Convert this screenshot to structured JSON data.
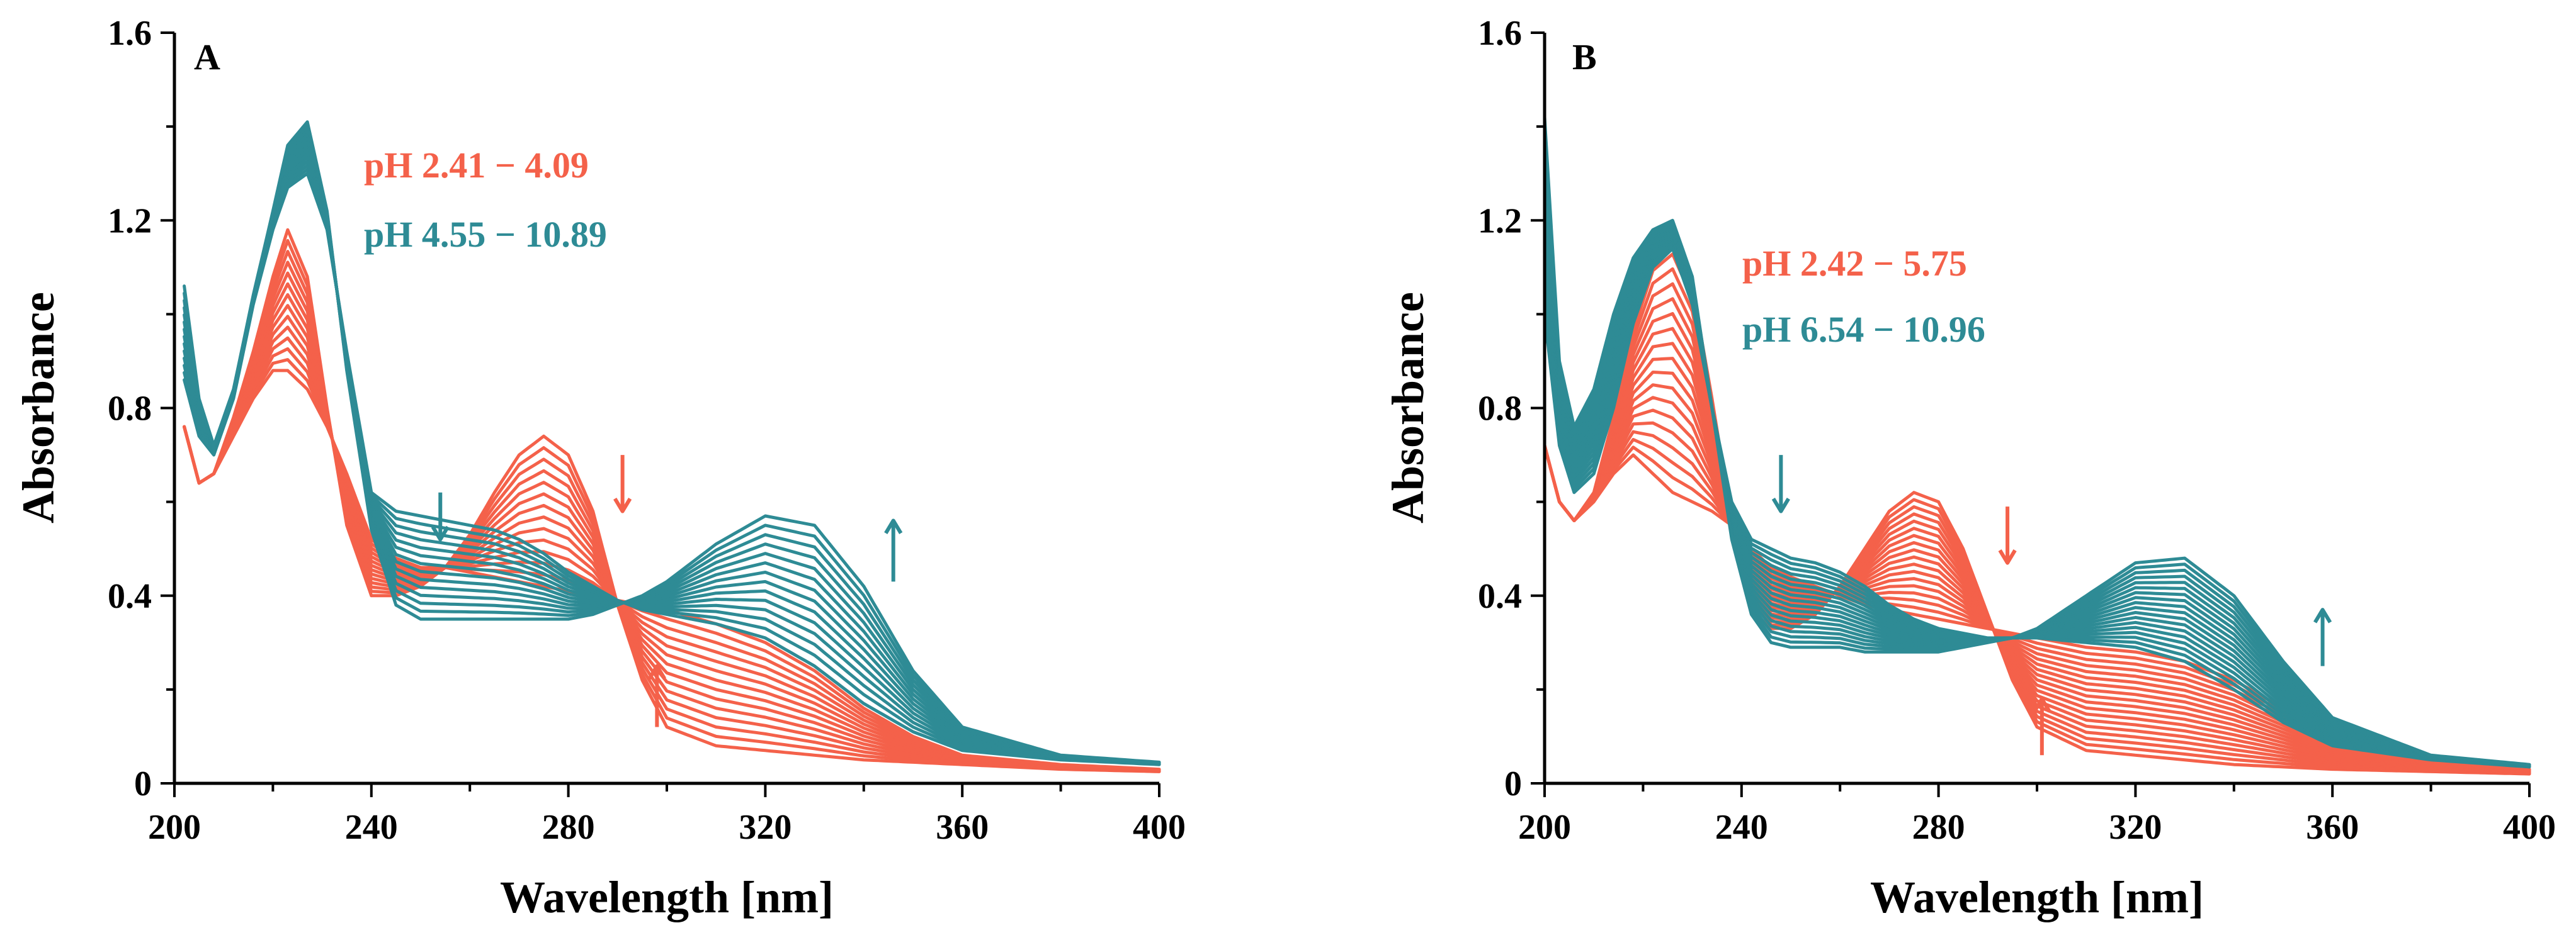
{
  "colors": {
    "acidic": "#F4614A",
    "basic": "#2E8B95"
  },
  "chart_data": [
    {
      "type": "line",
      "panel_label": "A",
      "xlabel": "Wavelength [nm]",
      "ylabel": "Absorbance",
      "xlim": [
        200,
        400
      ],
      "ylim": [
        0,
        1.6
      ],
      "xticks": [
        "200",
        "240",
        "280",
        "320",
        "360",
        "400"
      ],
      "yticks": [
        "0",
        "0.4",
        "0.8",
        "1.2",
        "1.6"
      ],
      "legend": [
        {
          "text": "pH 2.41 − 4.09",
          "group": "acidic"
        },
        {
          "text": "pH 4.55 − 10.89",
          "group": "basic"
        }
      ],
      "series_groups": [
        {
          "name": "pH 2.41 − 4.09",
          "count": 14,
          "first": {
            "x": [
              202,
              205,
              208,
              212,
              216,
              220,
              223,
              227,
              231,
              235,
              240,
              245,
              250,
              255,
              260,
              265,
              270,
              275,
              280,
              285,
              290,
              295,
              300,
              310,
              320,
              330,
              340,
              350,
              360,
              380,
              400
            ],
            "y": [
              0.76,
              0.64,
              0.66,
              0.78,
              0.92,
              1.08,
              1.18,
              1.08,
              0.8,
              0.55,
              0.4,
              0.4,
              0.42,
              0.46,
              0.53,
              0.62,
              0.7,
              0.74,
              0.7,
              0.58,
              0.38,
              0.22,
              0.12,
              0.08,
              0.07,
              0.06,
              0.05,
              0.045,
              0.04,
              0.03,
              0.025
            ]
          },
          "last": {
            "x": [
              202,
              205,
              208,
              212,
              216,
              220,
              223,
              227,
              231,
              235,
              240,
              245,
              250,
              255,
              260,
              265,
              270,
              275,
              280,
              285,
              290,
              295,
              300,
              310,
              320,
              330,
              340,
              350,
              360,
              380,
              400
            ],
            "y": [
              0.76,
              0.64,
              0.66,
              0.74,
              0.82,
              0.88,
              0.88,
              0.84,
              0.76,
              0.66,
              0.52,
              0.48,
              0.46,
              0.46,
              0.45,
              0.44,
              0.43,
              0.42,
              0.41,
              0.4,
              0.39,
              0.38,
              0.37,
              0.34,
              0.3,
              0.24,
              0.16,
              0.1,
              0.06,
              0.04,
              0.03
            ]
          }
        },
        {
          "name": "pH 4.55 − 10.89",
          "count": 14,
          "first": {
            "x": [
              202,
              205,
              208,
              212,
              216,
              220,
              223,
              227,
              231,
              235,
              240,
              245,
              250,
              255,
              260,
              265,
              270,
              275,
              280,
              285,
              290,
              295,
              300,
              310,
              320,
              330,
              340,
              350,
              360,
              380,
              400
            ],
            "y": [
              0.86,
              0.74,
              0.7,
              0.82,
              1.02,
              1.18,
              1.27,
              1.3,
              1.18,
              0.92,
              0.62,
              0.58,
              0.57,
              0.56,
              0.55,
              0.54,
              0.52,
              0.49,
              0.45,
              0.42,
              0.39,
              0.37,
              0.36,
              0.34,
              0.31,
              0.25,
              0.17,
              0.11,
              0.07,
              0.05,
              0.04
            ]
          },
          "last": {
            "x": [
              202,
              205,
              208,
              212,
              216,
              220,
              223,
              227,
              231,
              235,
              240,
              245,
              250,
              255,
              260,
              265,
              270,
              275,
              280,
              285,
              290,
              295,
              300,
              310,
              320,
              330,
              340,
              350,
              360,
              380,
              400
            ],
            "y": [
              1.06,
              0.82,
              0.72,
              0.84,
              1.04,
              1.22,
              1.36,
              1.41,
              1.22,
              0.88,
              0.54,
              0.38,
              0.35,
              0.35,
              0.35,
              0.35,
              0.35,
              0.35,
              0.35,
              0.36,
              0.38,
              0.4,
              0.43,
              0.51,
              0.57,
              0.55,
              0.42,
              0.24,
              0.12,
              0.06,
              0.045
            ]
          }
        }
      ],
      "arrows": [
        {
          "x": 254,
          "y_from": 0.62,
          "y_to": 0.52,
          "direction": "down",
          "group": "basic"
        },
        {
          "x": 291,
          "y_from": 0.7,
          "y_to": 0.58,
          "direction": "down",
          "group": "acidic"
        },
        {
          "x": 298,
          "y_from": 0.12,
          "y_to": 0.25,
          "direction": "up",
          "group": "acidic"
        },
        {
          "x": 346,
          "y_from": 0.43,
          "y_to": 0.56,
          "direction": "up",
          "group": "basic"
        }
      ]
    },
    {
      "type": "line",
      "panel_label": "B",
      "xlabel": "Wavelength [nm]",
      "ylabel": "Absorbance",
      "xlim": [
        200,
        400
      ],
      "ylim": [
        0,
        1.6
      ],
      "xticks": [
        "200",
        "240",
        "280",
        "320",
        "360",
        "400"
      ],
      "yticks": [
        "0",
        "0.4",
        "0.8",
        "1.2",
        "1.6"
      ],
      "legend": [
        {
          "text": "pH 2.42 − 5.75",
          "group": "acidic"
        },
        {
          "text": "pH 6.54 − 10.96",
          "group": "basic"
        }
      ],
      "series_groups": [
        {
          "name": "pH 2.42 − 5.75",
          "count": 18,
          "first": {
            "x": [
              200,
              203,
              206,
              210,
              214,
              218,
              222,
              226,
              230,
              234,
              238,
              242,
              246,
              250,
              255,
              260,
              265,
              270,
              275,
              280,
              285,
              290,
              295,
              300,
              310,
              320,
              330,
              340,
              350,
              360,
              380,
              400
            ],
            "y": [
              0.72,
              0.6,
              0.56,
              0.62,
              0.78,
              0.98,
              1.12,
              1.16,
              1.06,
              0.82,
              0.56,
              0.4,
              0.33,
              0.33,
              0.36,
              0.42,
              0.5,
              0.58,
              0.62,
              0.6,
              0.5,
              0.36,
              0.22,
              0.12,
              0.07,
              0.06,
              0.05,
              0.04,
              0.035,
              0.03,
              0.025,
              0.02
            ]
          },
          "last": {
            "x": [
              200,
              203,
              206,
              210,
              214,
              218,
              222,
              226,
              230,
              234,
              238,
              242,
              246,
              250,
              255,
              260,
              265,
              270,
              275,
              280,
              285,
              290,
              295,
              300,
              310,
              320,
              330,
              340,
              350,
              360,
              380,
              400
            ],
            "y": [
              0.72,
              0.6,
              0.56,
              0.6,
              0.66,
              0.7,
              0.66,
              0.62,
              0.6,
              0.58,
              0.55,
              0.5,
              0.46,
              0.44,
              0.42,
              0.4,
              0.38,
              0.37,
              0.36,
              0.35,
              0.34,
              0.33,
              0.32,
              0.31,
              0.29,
              0.28,
              0.26,
              0.22,
              0.16,
              0.1,
              0.05,
              0.03
            ]
          }
        },
        {
          "name": "pH 6.54 − 10.96",
          "count": 18,
          "first": {
            "x": [
              200,
              203,
              206,
              210,
              214,
              218,
              222,
              226,
              230,
              234,
              238,
              242,
              246,
              250,
              255,
              260,
              265,
              270,
              275,
              280,
              285,
              290,
              295,
              300,
              310,
              320,
              330,
              340,
              350,
              360,
              380,
              400
            ],
            "y": [
              1.0,
              0.72,
              0.62,
              0.66,
              0.8,
              0.98,
              1.1,
              1.14,
              1.02,
              0.8,
              0.6,
              0.52,
              0.5,
              0.48,
              0.47,
              0.45,
              0.42,
              0.38,
              0.35,
              0.33,
              0.32,
              0.31,
              0.31,
              0.31,
              0.3,
              0.29,
              0.26,
              0.2,
              0.13,
              0.08,
              0.05,
              0.035
            ]
          },
          "last": {
            "x": [
              200,
              203,
              206,
              210,
              214,
              218,
              222,
              226,
              230,
              234,
              238,
              242,
              246,
              250,
              255,
              260,
              265,
              270,
              275,
              280,
              285,
              290,
              295,
              300,
              310,
              320,
              330,
              340,
              350,
              360,
              380,
              400
            ],
            "y": [
              1.42,
              0.9,
              0.76,
              0.84,
              1.0,
              1.12,
              1.18,
              1.2,
              1.08,
              0.8,
              0.52,
              0.36,
              0.3,
              0.29,
              0.29,
              0.29,
              0.28,
              0.28,
              0.28,
              0.28,
              0.29,
              0.3,
              0.31,
              0.33,
              0.4,
              0.47,
              0.48,
              0.4,
              0.26,
              0.14,
              0.06,
              0.04
            ]
          }
        }
      ],
      "arrows": [
        {
          "x": 248,
          "y_from": 0.7,
          "y_to": 0.58,
          "direction": "down",
          "group": "basic"
        },
        {
          "x": 294,
          "y_from": 0.59,
          "y_to": 0.47,
          "direction": "down",
          "group": "acidic"
        },
        {
          "x": 301,
          "y_from": 0.06,
          "y_to": 0.18,
          "direction": "up",
          "group": "acidic"
        },
        {
          "x": 358,
          "y_from": 0.25,
          "y_to": 0.37,
          "direction": "up",
          "group": "basic"
        }
      ]
    }
  ]
}
